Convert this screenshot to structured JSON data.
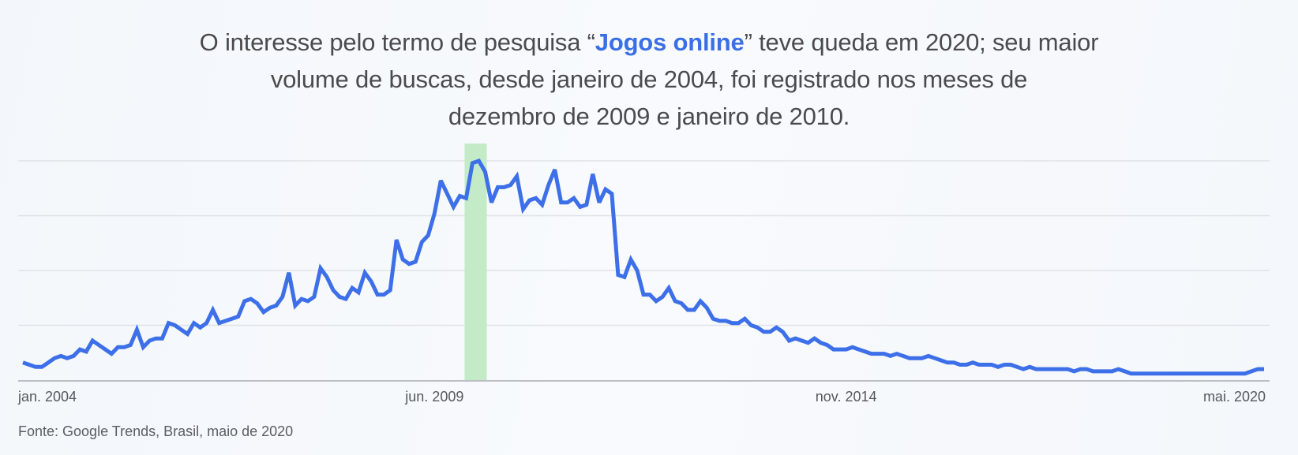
{
  "title": {
    "line1_pre": "O interesse pelo termo de pesquisa “",
    "term": "Jogos online",
    "line1_post": "” teve queda em 2020; seu maior",
    "line2": "volume de buscas, desde janeiro de 2004, foi registrado nos meses de",
    "line3": "dezembro de 2009 e janeiro de 2010."
  },
  "footer": "Fonte: Google Trends, Brasil, maio de 2020",
  "colors": {
    "line": "#3d6fe8",
    "highlight": "#c3ebc7",
    "term": "#3b6fe6",
    "grid": "#dfe2e6",
    "axis": "#a9acb0"
  },
  "chart_data": {
    "type": "line",
    "x_start": "2004-01",
    "frequency": "monthly",
    "ylim": [
      0,
      100
    ],
    "gridlines": [
      25,
      50,
      75,
      100
    ],
    "grid": true,
    "highlight": [
      "2009-12",
      "2010-01"
    ],
    "ticks": [
      {
        "month": "2004-01",
        "label": "jan. 2004"
      },
      {
        "month": "2009-06",
        "label": "jun. 2009"
      },
      {
        "month": "2014-11",
        "label": "nov. 2014"
      },
      {
        "month": "2020-05",
        "label": "mai. 2020"
      }
    ],
    "values": [
      8,
      7,
      6,
      6,
      8,
      10,
      11,
      10,
      11,
      14,
      13,
      18,
      16,
      14,
      12,
      15,
      15,
      16,
      23,
      15,
      18,
      19,
      19,
      26,
      25,
      23,
      21,
      26,
      24,
      26,
      32,
      26,
      27,
      28,
      29,
      36,
      37,
      35,
      31,
      33,
      34,
      38,
      49,
      34,
      37,
      36,
      38,
      51,
      47,
      41,
      38,
      37,
      42,
      40,
      49,
      45,
      39,
      39,
      41,
      64,
      55,
      53,
      54,
      63,
      66,
      76,
      91,
      85,
      79,
      84,
      83,
      99,
      100,
      95,
      81,
      88,
      88,
      89,
      93,
      78,
      82,
      83,
      80,
      89,
      96,
      81,
      81,
      83,
      79,
      80,
      94,
      81,
      87,
      85,
      48,
      47,
      55,
      50,
      39,
      39,
      36,
      38,
      42,
      36,
      35,
      32,
      32,
      36,
      33,
      28,
      27,
      27,
      26,
      26,
      28,
      25,
      24,
      22,
      22,
      24,
      22,
      18,
      19,
      18,
      17,
      19,
      17,
      16,
      14,
      14,
      14,
      15,
      14,
      13,
      12,
      12,
      12,
      11,
      12,
      11,
      10,
      10,
      10,
      11,
      10,
      9,
      8,
      8,
      7,
      7,
      8,
      7,
      7,
      7,
      6,
      7,
      7,
      6,
      5,
      6,
      5,
      5,
      5,
      5,
      5,
      5,
      4,
      5,
      5,
      4,
      4,
      4,
      4,
      5,
      4,
      3,
      3,
      3,
      3,
      3,
      3,
      3,
      3,
      3,
      3,
      3,
      3,
      3,
      3,
      3,
      3,
      3,
      3,
      3,
      4,
      5,
      5
    ]
  }
}
